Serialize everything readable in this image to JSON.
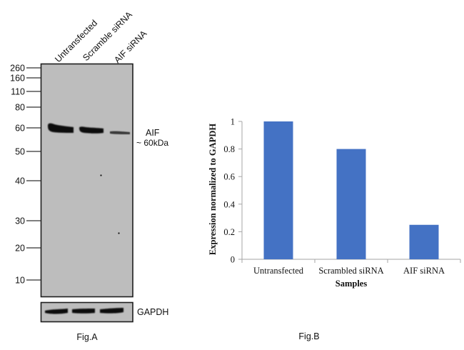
{
  "figure_a": {
    "caption": "Fig.A",
    "lanes": [
      "Untransfected",
      "Scramble siRNA",
      "AIF siRNA"
    ],
    "markers_kda": [
      "260",
      "160",
      "110",
      "80",
      "60",
      "50",
      "40",
      "30",
      "20",
      "10"
    ],
    "target_label": "AIF",
    "target_size": "~ 60kDa",
    "loading_control_label": "GAPDH",
    "band_relative_intensity": [
      1.0,
      0.8,
      0.25
    ],
    "colors": {
      "membrane": "#bdbdbd",
      "band": "#0a0a0a",
      "border": "#222222"
    }
  },
  "chart_data": {
    "type": "bar",
    "caption": "Fig.B",
    "title": "",
    "categories": [
      "Untransfected",
      "Scrambled siRNA",
      "AIF siRNA"
    ],
    "values": [
      1.0,
      0.8,
      0.25
    ],
    "xlabel": "Samples",
    "ylabel": "Expression normalized to GAPDH",
    "ylim": [
      0,
      1
    ],
    "yticks": [
      0,
      0.2,
      0.4,
      0.6,
      0.8,
      1
    ],
    "ytick_labels": [
      "0",
      "0.2",
      "0.4",
      "0.6",
      "0.8",
      "1"
    ],
    "grid": false,
    "legend": "none",
    "bar_color": "#4472c4",
    "axis_color": "#a6a6a6"
  }
}
